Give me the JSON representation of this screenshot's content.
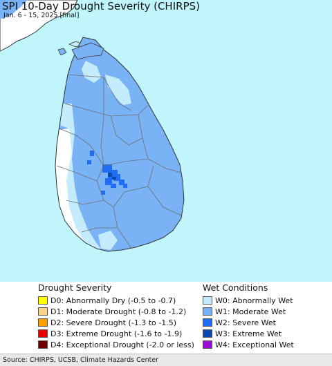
{
  "map": {
    "title": "SPI 10-Day Drought Severity (CHIRPS)",
    "subtitle": "Jan. 6 - 15, 2025 [final]",
    "colors": {
      "ocean": "#bff5fb",
      "no_anomaly": "#ffffff",
      "w0": "#c4ecfc",
      "w1": "#79b2f5",
      "w2": "#1f6df2",
      "w3": "#0848b0",
      "w4": "#9c0dd6",
      "border": "#6e6e6e",
      "coast": "#333333"
    }
  },
  "legend": {
    "drought_heading": "Drought Severity",
    "wet_heading": "Wet Conditions",
    "drought_items": [
      {
        "label": "D0: Abnormally Dry (-0.5 to -0.7)",
        "color": "#ffff00"
      },
      {
        "label": "D1: Moderate Drought (-0.8 to -1.2)",
        "color": "#fcd28a"
      },
      {
        "label": "D2: Severe Drought (-1.3 to -1.5)",
        "color": "#ffa000"
      },
      {
        "label": "D3: Extreme Drought (-1.6 to -1.9)",
        "color": "#e60000"
      },
      {
        "label": "D4: Exceptional Drought (-2.0 or less)",
        "color": "#720000"
      }
    ],
    "wet_items": [
      {
        "label": "W0: Abnormally Wet",
        "color": "#c4ecfc"
      },
      {
        "label": "W1: Moderate Wet",
        "color": "#79b2f5"
      },
      {
        "label": "W2: Severe Wet",
        "color": "#1f6df2"
      },
      {
        "label": "W3: Extreme Wet",
        "color": "#0848b0"
      },
      {
        "label": "W4: Exceptional Wet",
        "color": "#9c0dd6"
      }
    ]
  },
  "footer": {
    "source": "Source: CHIRPS, UCSB, Climate Hazards Center"
  }
}
